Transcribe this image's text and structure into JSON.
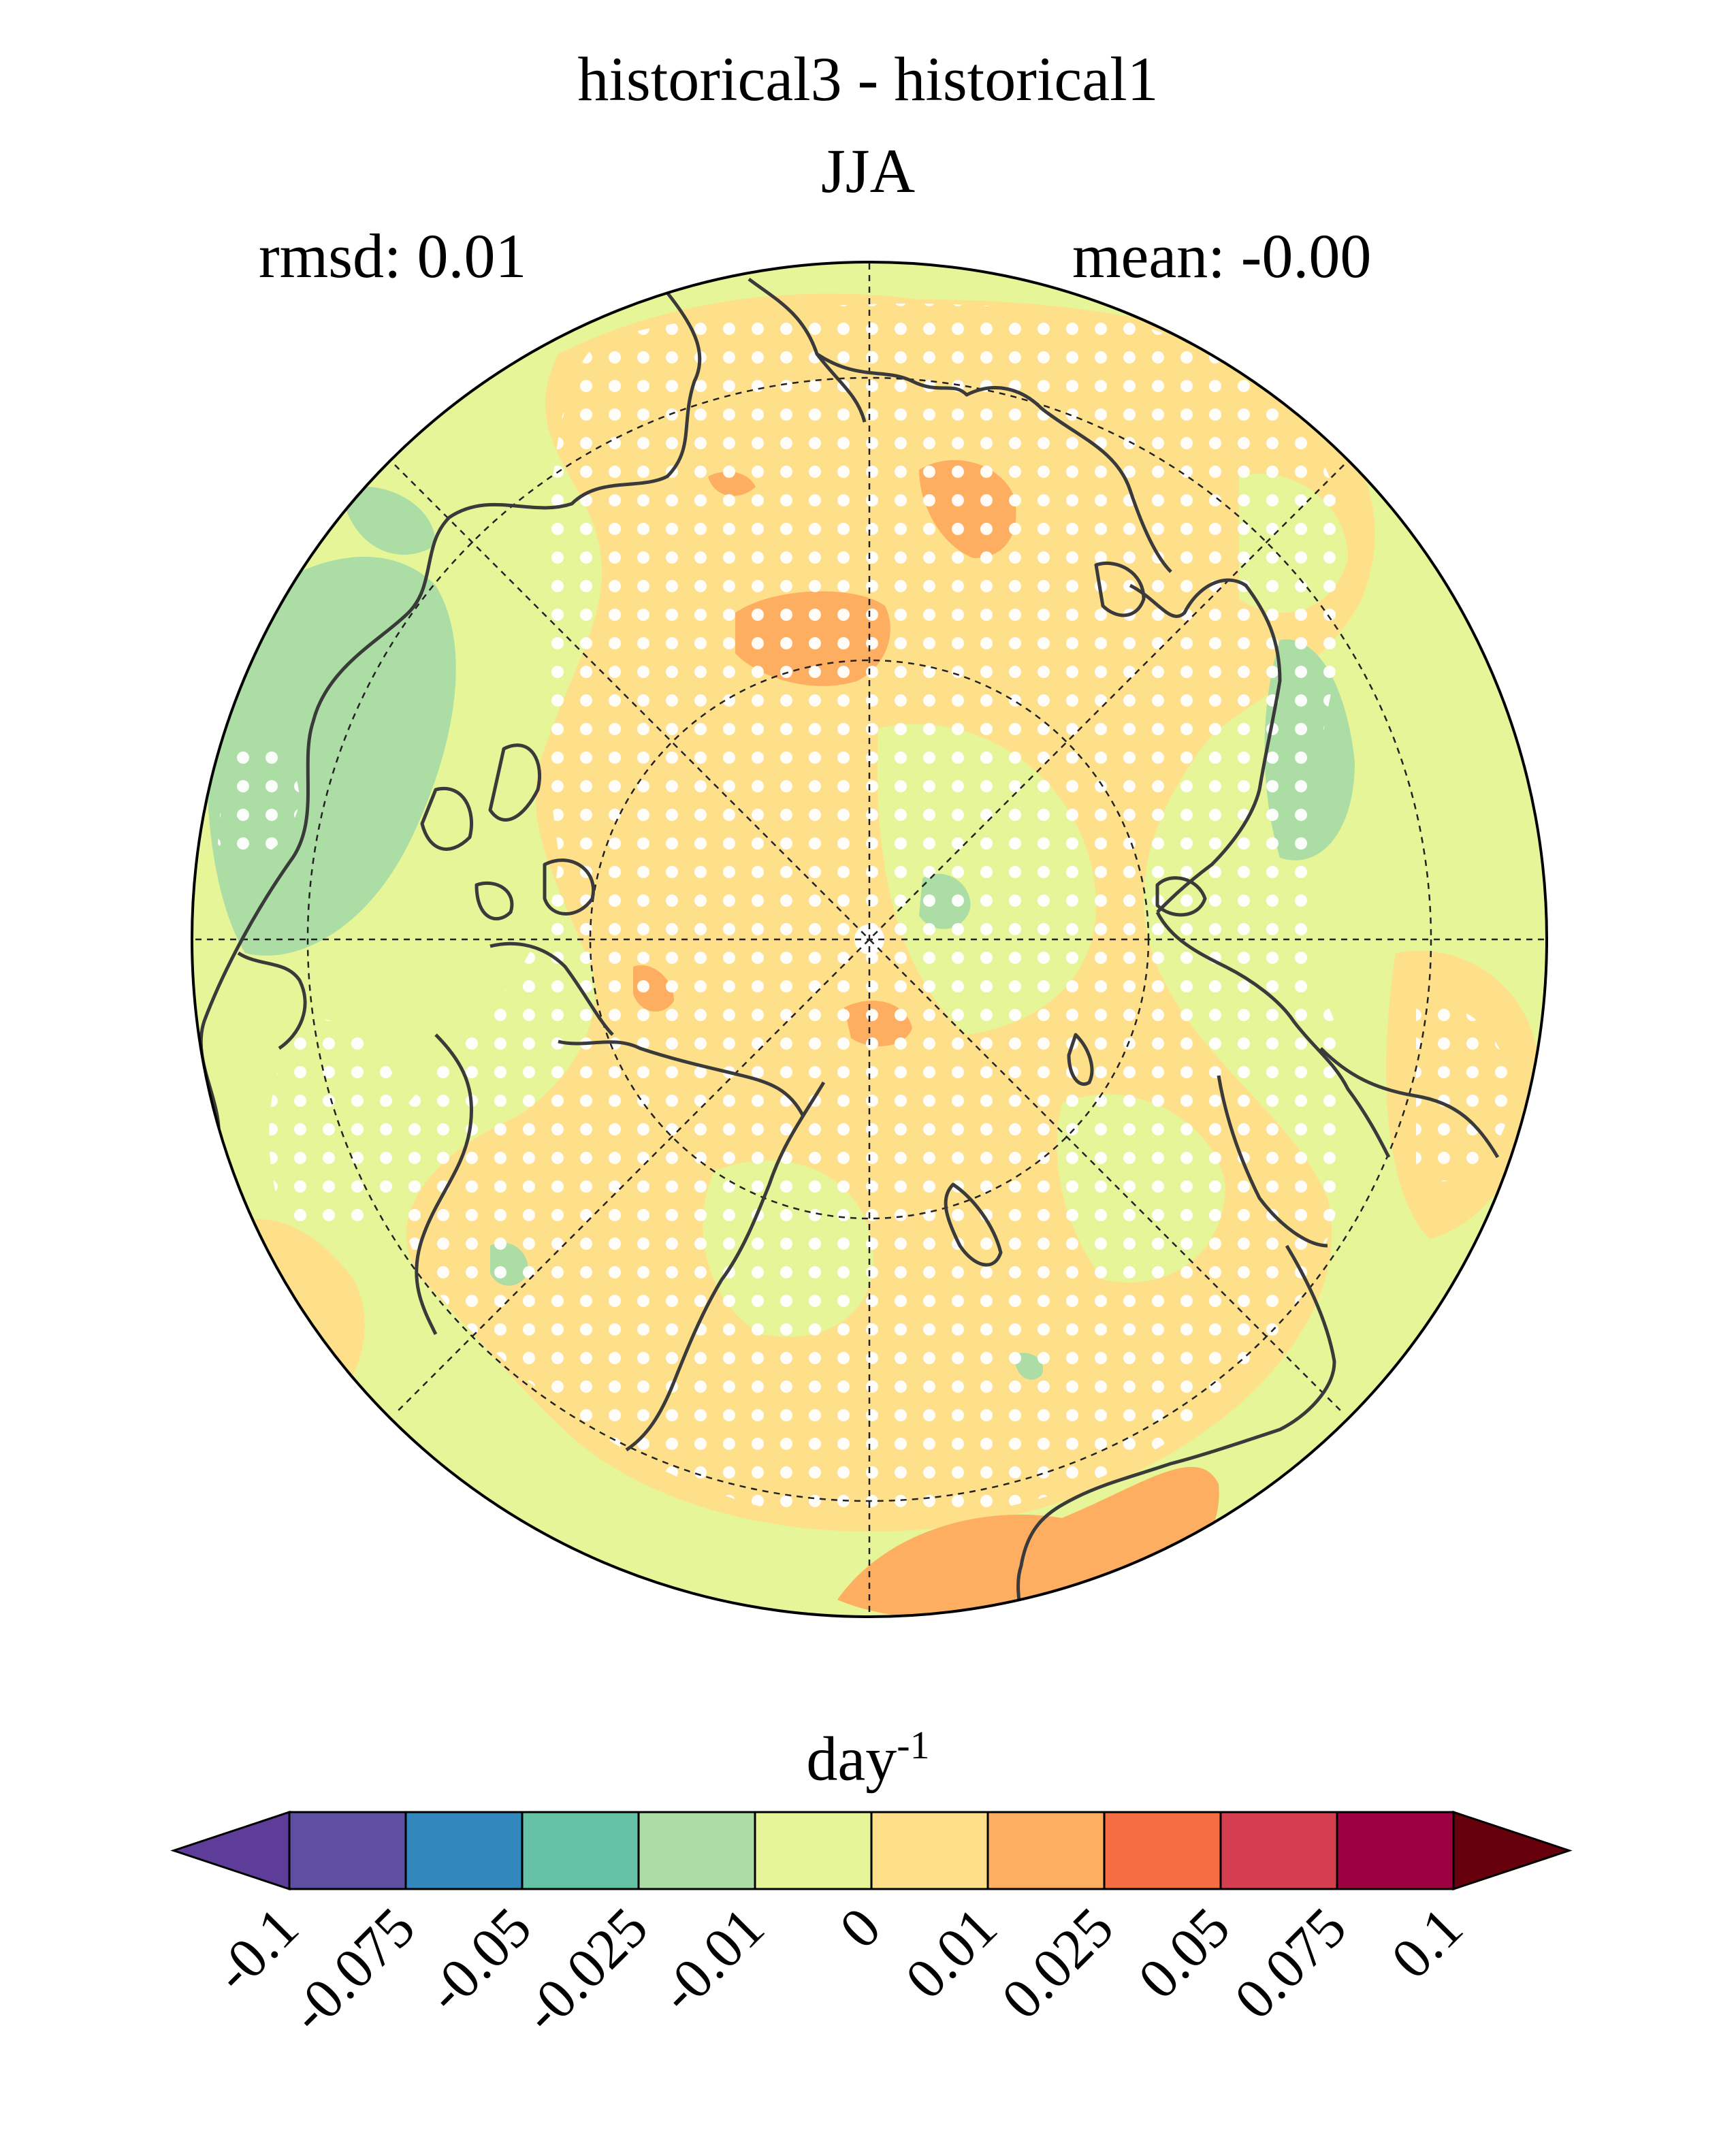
{
  "title": "historical3 - historical1",
  "season": "JJA",
  "stats": {
    "rmsd_label": "rmsd: 0.01",
    "mean_label": "mean: -0.00"
  },
  "units": {
    "base": "day",
    "exponent": "-1"
  },
  "chart_data": {
    "type": "heatmap",
    "projection": "north polar stereographic",
    "title": "historical3 - historical1",
    "subtitle": "JJA",
    "rmsd": 0.01,
    "mean": -0.0,
    "colorbar": {
      "label": "day^-1",
      "levels": [
        -0.1,
        -0.075,
        -0.05,
        -0.025,
        -0.01,
        0,
        0.01,
        0.025,
        0.05,
        0.075,
        0.1
      ],
      "tick_labels": [
        "-0.1",
        "-0.075",
        "-0.05",
        "-0.025",
        "-0.01",
        "0",
        "0.01",
        "0.025",
        "0.05",
        "0.075",
        "0.1"
      ],
      "colors": [
        "#5e4fa2",
        "#3288bd",
        "#66c2a5",
        "#abdda4",
        "#e6f598",
        "#fee08b",
        "#fdae61",
        "#f46d43",
        "#d53e4f",
        "#9e0142"
      ],
      "under_color": "#5e3c99",
      "over_color": "#67000d",
      "extend": "both"
    },
    "stippling": "white dots mark significant differences",
    "dominant_bins": [
      "-0.01 to 0",
      "0 to 0.01"
    ]
  }
}
